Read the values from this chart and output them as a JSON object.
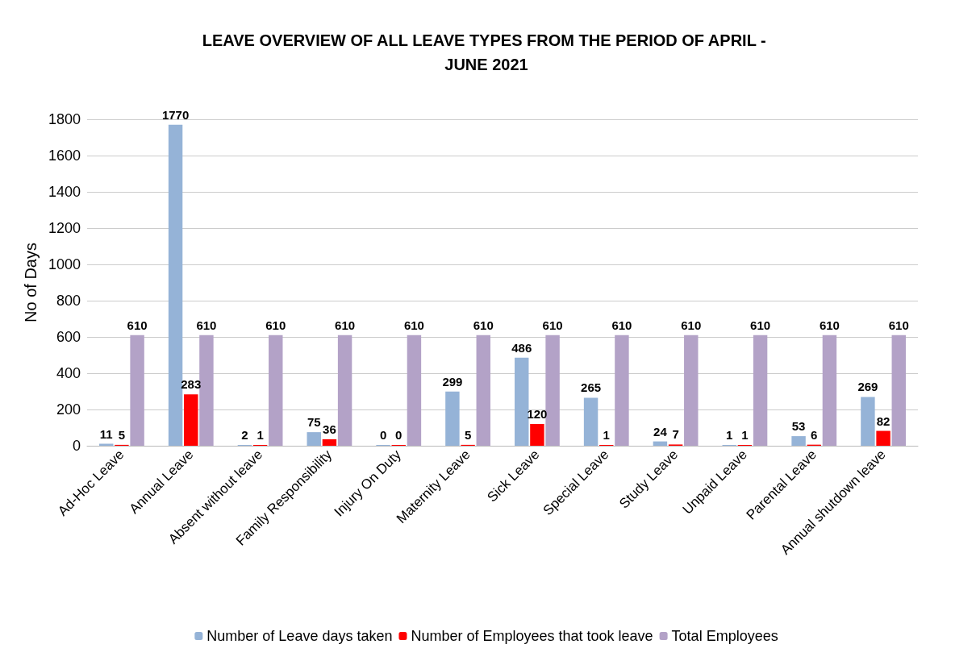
{
  "chart_data": {
    "type": "bar",
    "title": "LEAVE OVERVIEW OF ALL LEAVE TYPES FROM THE PERIOD OF APRIL - JUNE 2021",
    "ylabel": "No of Days",
    "categories": [
      "Ad-Hoc Leave",
      "Annual Leave",
      "Absent without leave",
      "Family Responsibility",
      "Injury On Duty",
      "Maternity Leave",
      "Sick Leave",
      "Special Leave",
      "Study Leave",
      "Unpaid Leave",
      "Parental Leave",
      "Annual shutdown leave"
    ],
    "series": [
      {
        "name": "Number of Leave days taken",
        "color": "#95b3d7",
        "values": [
          11,
          1770,
          2,
          75,
          0,
          299,
          486,
          265,
          24,
          1,
          53,
          269
        ]
      },
      {
        "name": "Number of Employees that took leave",
        "color": "#ff0000",
        "values": [
          5,
          283,
          1,
          36,
          0,
          5,
          120,
          1,
          7,
          1,
          6,
          82
        ]
      },
      {
        "name": "Total Employees",
        "color": "#b3a2c7",
        "values": [
          610,
          610,
          610,
          610,
          610,
          610,
          610,
          610,
          610,
          610,
          610,
          610
        ]
      }
    ],
    "ylim": [
      0,
      1800
    ],
    "yticks": [
      0,
      200,
      400,
      600,
      800,
      1000,
      1200,
      1400,
      1600,
      1800
    ],
    "grid": "y",
    "legend": "bottom",
    "data_labels": true
  }
}
